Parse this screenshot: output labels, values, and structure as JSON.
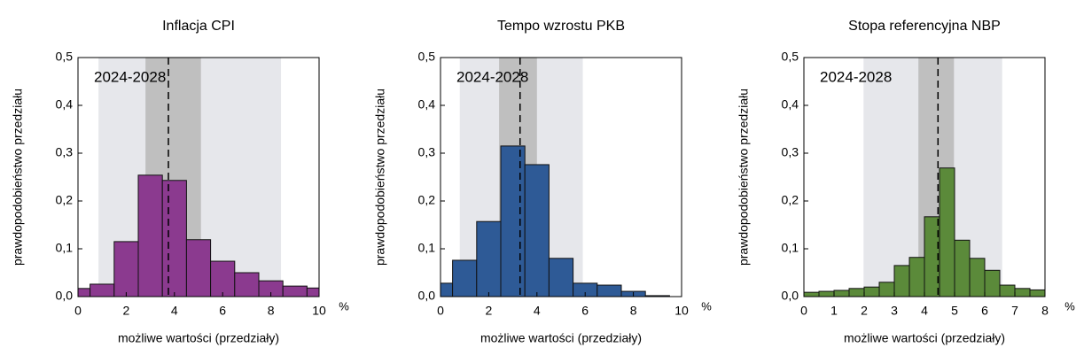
{
  "chart_data": [
    {
      "type": "histogram",
      "title": "Inflacja CPI",
      "annotation": "2024-2028",
      "xlabel": "możliwe wartości (przedziały)",
      "ylabel": "prawdopodobieństwo przedziału",
      "x_unit_label": "%",
      "bins": [
        0,
        0.5,
        1.5,
        2.5,
        3.5,
        4.5,
        5.5,
        6.5,
        7.5,
        8.5,
        9.5,
        10
      ],
      "values": [
        0.017,
        0.026,
        0.115,
        0.254,
        0.243,
        0.119,
        0.074,
        0.05,
        0.033,
        0.022,
        0.018
      ],
      "color": "#8b3a8f",
      "edgecolor": "#111111",
      "bands": [
        {
          "range": [
            0.85,
            8.42
          ],
          "color": "#e6e7eb"
        },
        {
          "range": [
            2.8,
            5.1
          ],
          "color": "#bfbfbf"
        }
      ],
      "mean_line": 3.75,
      "xlim": [
        0,
        10
      ],
      "xticks": [
        0,
        2,
        4,
        6,
        8,
        10
      ],
      "ylim": [
        0,
        0.5
      ],
      "yticks": [
        {
          "value": 0,
          "label": "0,0"
        },
        {
          "value": 0.1,
          "label": "0,1"
        },
        {
          "value": 0.2,
          "label": "0,2"
        },
        {
          "value": 0.3,
          "label": "0,3"
        },
        {
          "value": 0.4,
          "label": "0,4"
        },
        {
          "value": 0.5,
          "label": "0,5"
        }
      ]
    },
    {
      "type": "histogram",
      "title": "Tempo wzrostu PKB",
      "annotation": "2024-2028",
      "xlabel": "możliwe wartości (przedziały)",
      "ylabel": "prawdopodobieństwo przedziału",
      "x_unit_label": "%",
      "bins": [
        0,
        0.5,
        1.5,
        2.5,
        3.5,
        4.5,
        5.5,
        6.5,
        7.5,
        8.5,
        9.5
      ],
      "values": [
        0.028,
        0.076,
        0.157,
        0.315,
        0.276,
        0.08,
        0.028,
        0.024,
        0.011,
        0.002
      ],
      "color": "#2e5a96",
      "edgecolor": "#111111",
      "bands": [
        {
          "range": [
            0.8,
            5.9
          ],
          "color": "#e6e7eb"
        },
        {
          "range": [
            2.43,
            4.0
          ],
          "color": "#bfbfbf"
        }
      ],
      "mean_line": 3.3,
      "xlim": [
        0,
        10
      ],
      "xticks": [
        0,
        2,
        4,
        6,
        8,
        10
      ],
      "ylim": [
        0,
        0.5
      ],
      "yticks": [
        {
          "value": 0,
          "label": "0,0"
        },
        {
          "value": 0.1,
          "label": "0,1"
        },
        {
          "value": 0.2,
          "label": "0,2"
        },
        {
          "value": 0.3,
          "label": "0,3"
        },
        {
          "value": 0.4,
          "label": "0,4"
        },
        {
          "value": 0.5,
          "label": "0,5"
        }
      ]
    },
    {
      "type": "histogram",
      "title": "Stopa referencyjna NBP",
      "annotation": "2024-2028",
      "xlabel": "możliwe wartości (przedziały)",
      "ylabel": "prawdopodobieństwo przedziału",
      "x_unit_label": "%",
      "bins": [
        0,
        0.5,
        1,
        1.5,
        2,
        2.5,
        3,
        3.5,
        4,
        4.5,
        5,
        5.5,
        6,
        6.5,
        7,
        7.5,
        8
      ],
      "values": [
        0.009,
        0.011,
        0.013,
        0.017,
        0.02,
        0.03,
        0.065,
        0.082,
        0.167,
        0.269,
        0.118,
        0.08,
        0.055,
        0.024,
        0.017,
        0.014
      ],
      "color": "#5b8a3a",
      "edgecolor": "#111111",
      "bands": [
        {
          "range": [
            1.98,
            6.58
          ],
          "color": "#e6e7eb"
        },
        {
          "range": [
            3.8,
            4.98
          ],
          "color": "#bfbfbf"
        }
      ],
      "mean_line": 4.45,
      "xlim": [
        0,
        8
      ],
      "xticks": [
        0,
        1,
        2,
        3,
        4,
        5,
        6,
        7,
        8
      ],
      "ylim": [
        0,
        0.5
      ],
      "yticks": [
        {
          "value": 0,
          "label": "0,0"
        },
        {
          "value": 0.1,
          "label": "0,1"
        },
        {
          "value": 0.2,
          "label": "0,2"
        },
        {
          "value": 0.3,
          "label": "0,3"
        },
        {
          "value": 0.4,
          "label": "0,4"
        },
        {
          "value": 0.5,
          "label": "0,5"
        }
      ]
    }
  ]
}
